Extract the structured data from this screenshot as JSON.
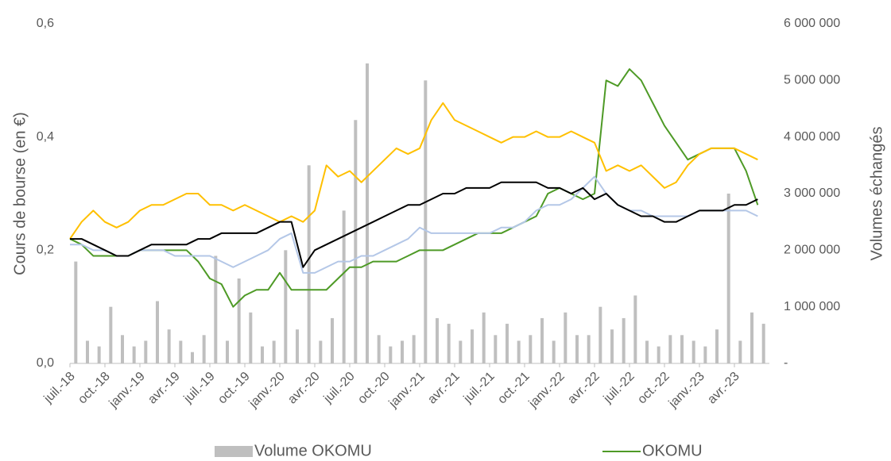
{
  "chart_data": {
    "type": "line",
    "ylabel": "Cours de bourse (en €)",
    "y2label": "Volumes échangés",
    "categories": [
      "juil.-18",
      null,
      null,
      "oct.-18",
      null,
      null,
      "janv.-19",
      null,
      null,
      "avr.-19",
      null,
      null,
      "juil.-19",
      null,
      null,
      "oct.-19",
      null,
      null,
      "janv.-20",
      null,
      null,
      "avr.-20",
      null,
      null,
      "juil.-20",
      null,
      null,
      "oct.-20",
      null,
      null,
      "janv.-21",
      null,
      null,
      "avr.-21",
      null,
      null,
      "juil.-21",
      null,
      null,
      "oct.-21",
      null,
      null,
      "janv.-22",
      null,
      null,
      "avr.-22",
      null,
      null,
      "juil.-22",
      null,
      null,
      "oct.-22",
      null,
      null,
      "janv.-23",
      null,
      null,
      "avr.-23",
      null,
      null
    ],
    "ylim": [
      0,
      0.6
    ],
    "yticks": [
      {
        "value": 0,
        "label": "0,0"
      },
      {
        "value": 0.2,
        "label": "0,2"
      },
      {
        "value": 0.4,
        "label": "0,4"
      },
      {
        "value": 0.6,
        "label": "0,6"
      }
    ],
    "y2lim": [
      0,
      6000000
    ],
    "y2ticks": [
      {
        "value": 0,
        "label": "-"
      },
      {
        "value": 1000000,
        "label": "1 000 000"
      },
      {
        "value": 2000000,
        "label": "2 000 000"
      },
      {
        "value": 3000000,
        "label": "3 000 000"
      },
      {
        "value": 4000000,
        "label": "4 000 000"
      },
      {
        "value": 5000000,
        "label": "5 000 000"
      },
      {
        "value": 6000000,
        "label": "6 000 000"
      }
    ],
    "grid": false,
    "legend": "bottom",
    "series": [
      {
        "name": "Volume OKOMU",
        "type": "bar",
        "axis": "y2",
        "color": "#bfbfbf",
        "values": [
          1800000,
          400000,
          300000,
          1000000,
          500000,
          300000,
          400000,
          1100000,
          600000,
          400000,
          200000,
          500000,
          1900000,
          400000,
          1500000,
          900000,
          300000,
          400000,
          2000000,
          600000,
          3500000,
          400000,
          800000,
          2700000,
          4300000,
          5300000,
          500000,
          300000,
          400000,
          500000,
          5000000,
          800000,
          700000,
          400000,
          600000,
          900000,
          500000,
          700000,
          400000,
          500000,
          800000,
          400000,
          900000,
          500000,
          500000,
          1000000,
          600000,
          800000,
          1200000,
          400000,
          300000,
          500000,
          500000,
          400000,
          300000,
          600000,
          3000000,
          400000,
          900000,
          700000
        ]
      },
      {
        "name": "OKOMU",
        "type": "line",
        "color": "#4e9a26",
        "values": [
          0.22,
          0.21,
          0.19,
          0.19,
          0.19,
          0.19,
          0.2,
          0.2,
          0.2,
          0.2,
          0.2,
          0.18,
          0.15,
          0.14,
          0.1,
          0.12,
          0.13,
          0.13,
          0.16,
          0.13,
          0.13,
          0.13,
          0.13,
          0.15,
          0.17,
          0.17,
          0.18,
          0.18,
          0.18,
          0.19,
          0.2,
          0.2,
          0.2,
          0.21,
          0.22,
          0.23,
          0.23,
          0.23,
          0.24,
          0.25,
          0.26,
          0.3,
          0.31,
          0.3,
          0.29,
          0.3,
          0.5,
          0.49,
          0.52,
          0.5,
          0.46,
          0.42,
          0.39,
          0.36,
          0.37,
          0.38,
          0.38,
          0.38,
          0.34,
          0.28
        ]
      },
      {
        "type": "line",
        "color": "#ffc000",
        "values": [
          0.22,
          0.25,
          0.27,
          0.25,
          0.24,
          0.25,
          0.27,
          0.28,
          0.28,
          0.29,
          0.3,
          0.3,
          0.28,
          0.28,
          0.27,
          0.28,
          0.27,
          0.26,
          0.25,
          0.26,
          0.25,
          0.27,
          0.35,
          0.33,
          0.34,
          0.32,
          0.34,
          0.36,
          0.38,
          0.37,
          0.38,
          0.43,
          0.46,
          0.43,
          0.42,
          0.41,
          0.4,
          0.39,
          0.4,
          0.4,
          0.41,
          0.4,
          0.4,
          0.41,
          0.4,
          0.39,
          0.34,
          0.35,
          0.34,
          0.35,
          0.33,
          0.31,
          0.32,
          0.35,
          0.37,
          0.38,
          0.38,
          0.38,
          0.37,
          0.36
        ]
      },
      {
        "type": "line",
        "color": "#b4c7e7",
        "values": [
          0.21,
          0.21,
          0.2,
          0.2,
          0.19,
          0.19,
          0.2,
          0.2,
          0.2,
          0.19,
          0.19,
          0.19,
          0.19,
          0.18,
          0.17,
          0.18,
          0.19,
          0.2,
          0.22,
          0.23,
          0.16,
          0.16,
          0.17,
          0.18,
          0.18,
          0.19,
          0.19,
          0.2,
          0.21,
          0.22,
          0.24,
          0.23,
          0.23,
          0.23,
          0.23,
          0.23,
          0.23,
          0.24,
          0.24,
          0.25,
          0.27,
          0.28,
          0.28,
          0.29,
          0.31,
          0.33,
          0.3,
          0.28,
          0.27,
          0.27,
          0.26,
          0.26,
          0.26,
          0.26,
          0.27,
          0.27,
          0.27,
          0.27,
          0.27,
          0.26
        ]
      },
      {
        "type": "line",
        "color": "#000000",
        "values": [
          0.22,
          0.22,
          0.21,
          0.2,
          0.19,
          0.19,
          0.2,
          0.21,
          0.21,
          0.21,
          0.21,
          0.22,
          0.22,
          0.23,
          0.23,
          0.23,
          0.23,
          0.24,
          0.25,
          0.25,
          0.17,
          0.2,
          0.21,
          0.22,
          0.23,
          0.24,
          0.25,
          0.26,
          0.27,
          0.28,
          0.28,
          0.29,
          0.3,
          0.3,
          0.31,
          0.31,
          0.31,
          0.32,
          0.32,
          0.32,
          0.32,
          0.31,
          0.31,
          0.3,
          0.31,
          0.29,
          0.3,
          0.28,
          0.27,
          0.26,
          0.26,
          0.25,
          0.25,
          0.26,
          0.27,
          0.27,
          0.27,
          0.28,
          0.28,
          0.29
        ]
      }
    ]
  }
}
